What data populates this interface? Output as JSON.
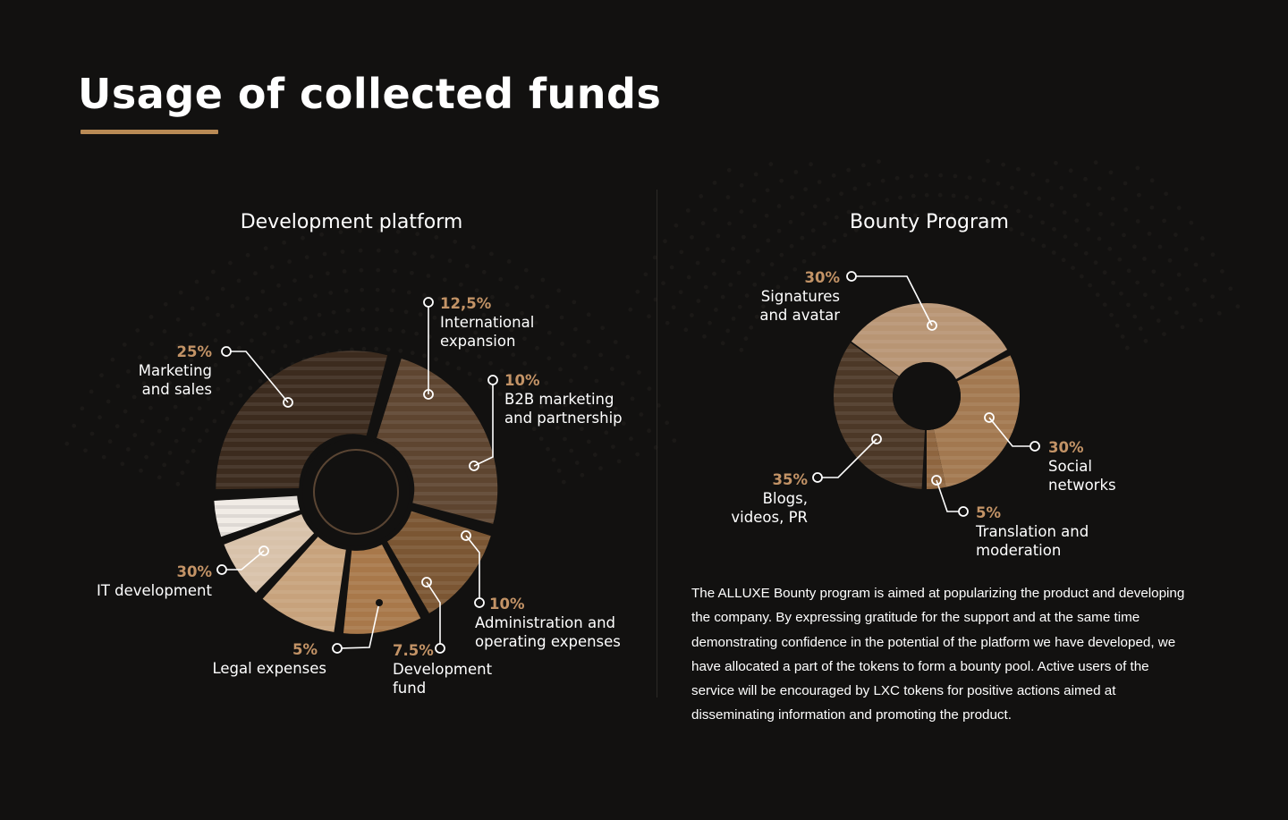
{
  "title": "Usage of collected funds",
  "colors": {
    "accent": "#c39366",
    "underline": "#b98a55",
    "background": "#121110"
  },
  "chart_data": [
    {
      "type": "pie",
      "title": "Development platform",
      "slices": [
        {
          "label": "Marketing and sales",
          "pct_label": "25%",
          "value": 25,
          "color": "#5e4530"
        },
        {
          "label": "International expansion",
          "pct_label": "12,5%",
          "value": 12.5,
          "color": "#7b5633"
        },
        {
          "label": "B2B marketing and partnership",
          "pct_label": "10%",
          "value": 10,
          "color": "#a8784a"
        },
        {
          "label": "Administration and operating expenses",
          "pct_label": "10%",
          "value": 10,
          "color": "#c7a27c"
        },
        {
          "label": "Development fund",
          "pct_label": "7.5%",
          "value": 7.5,
          "color": "#d8c2aa"
        },
        {
          "label": "Legal expenses",
          "pct_label": "5%",
          "value": 5,
          "color": "#f1ece6"
        },
        {
          "label": "IT development",
          "pct_label": "30%",
          "value": 30,
          "color": "#3c2b1e"
        }
      ]
    },
    {
      "type": "pie",
      "title": "Bounty Program",
      "slices": [
        {
          "label": "Signatures\nand avatar",
          "pct_label": "30%",
          "value": 30,
          "color": "#b89574"
        },
        {
          "label": "Social\nnetworks",
          "pct_label": "30%",
          "value": 30,
          "color": "#a27850"
        },
        {
          "label": "Translation and\nmoderation",
          "pct_label": "5%",
          "value": 5,
          "color": "#8e653f"
        },
        {
          "label": "Blogs,\nvideos, PR",
          "pct_label": "35%",
          "value": 35,
          "color": "#4c3827"
        }
      ]
    }
  ],
  "left_labels": {
    "marketing": {
      "pct": "25%",
      "name": "Marketing\nand sales"
    },
    "international": {
      "pct": "12,5%",
      "name": "International\nexpansion"
    },
    "b2b": {
      "pct": "10%",
      "name": "B2B marketing\nand partnership"
    },
    "admin": {
      "pct": "10%",
      "name": "Administration and\noperating expenses"
    },
    "devfund": {
      "pct": "7.5%",
      "name": "Development\nfund"
    },
    "legal": {
      "pct": "5%",
      "name": "Legal expenses"
    },
    "it": {
      "pct": "30%",
      "name": "IT development"
    }
  },
  "right_labels": {
    "signatures": {
      "pct": "30%",
      "name": "Signatures\nand avatar"
    },
    "social": {
      "pct": "30%",
      "name": "Social\nnetworks"
    },
    "translation": {
      "pct": "5%",
      "name": "Translation and\nmoderation"
    },
    "blogs": {
      "pct": "35%",
      "name": "Blogs,\nvideos, PR"
    }
  },
  "bounty_text": "The ALLUXE Bounty program is aimed at popularizing the product and developing the company. By expressing gratitude for the support and at the same time demonstrating confidence in the potential of the platform we have developed, we have allocated a part of the tokens to form a bounty pool. Active users of the service will be encouraged by LXC tokens for positive actions aimed at disseminating information and promoting the product."
}
